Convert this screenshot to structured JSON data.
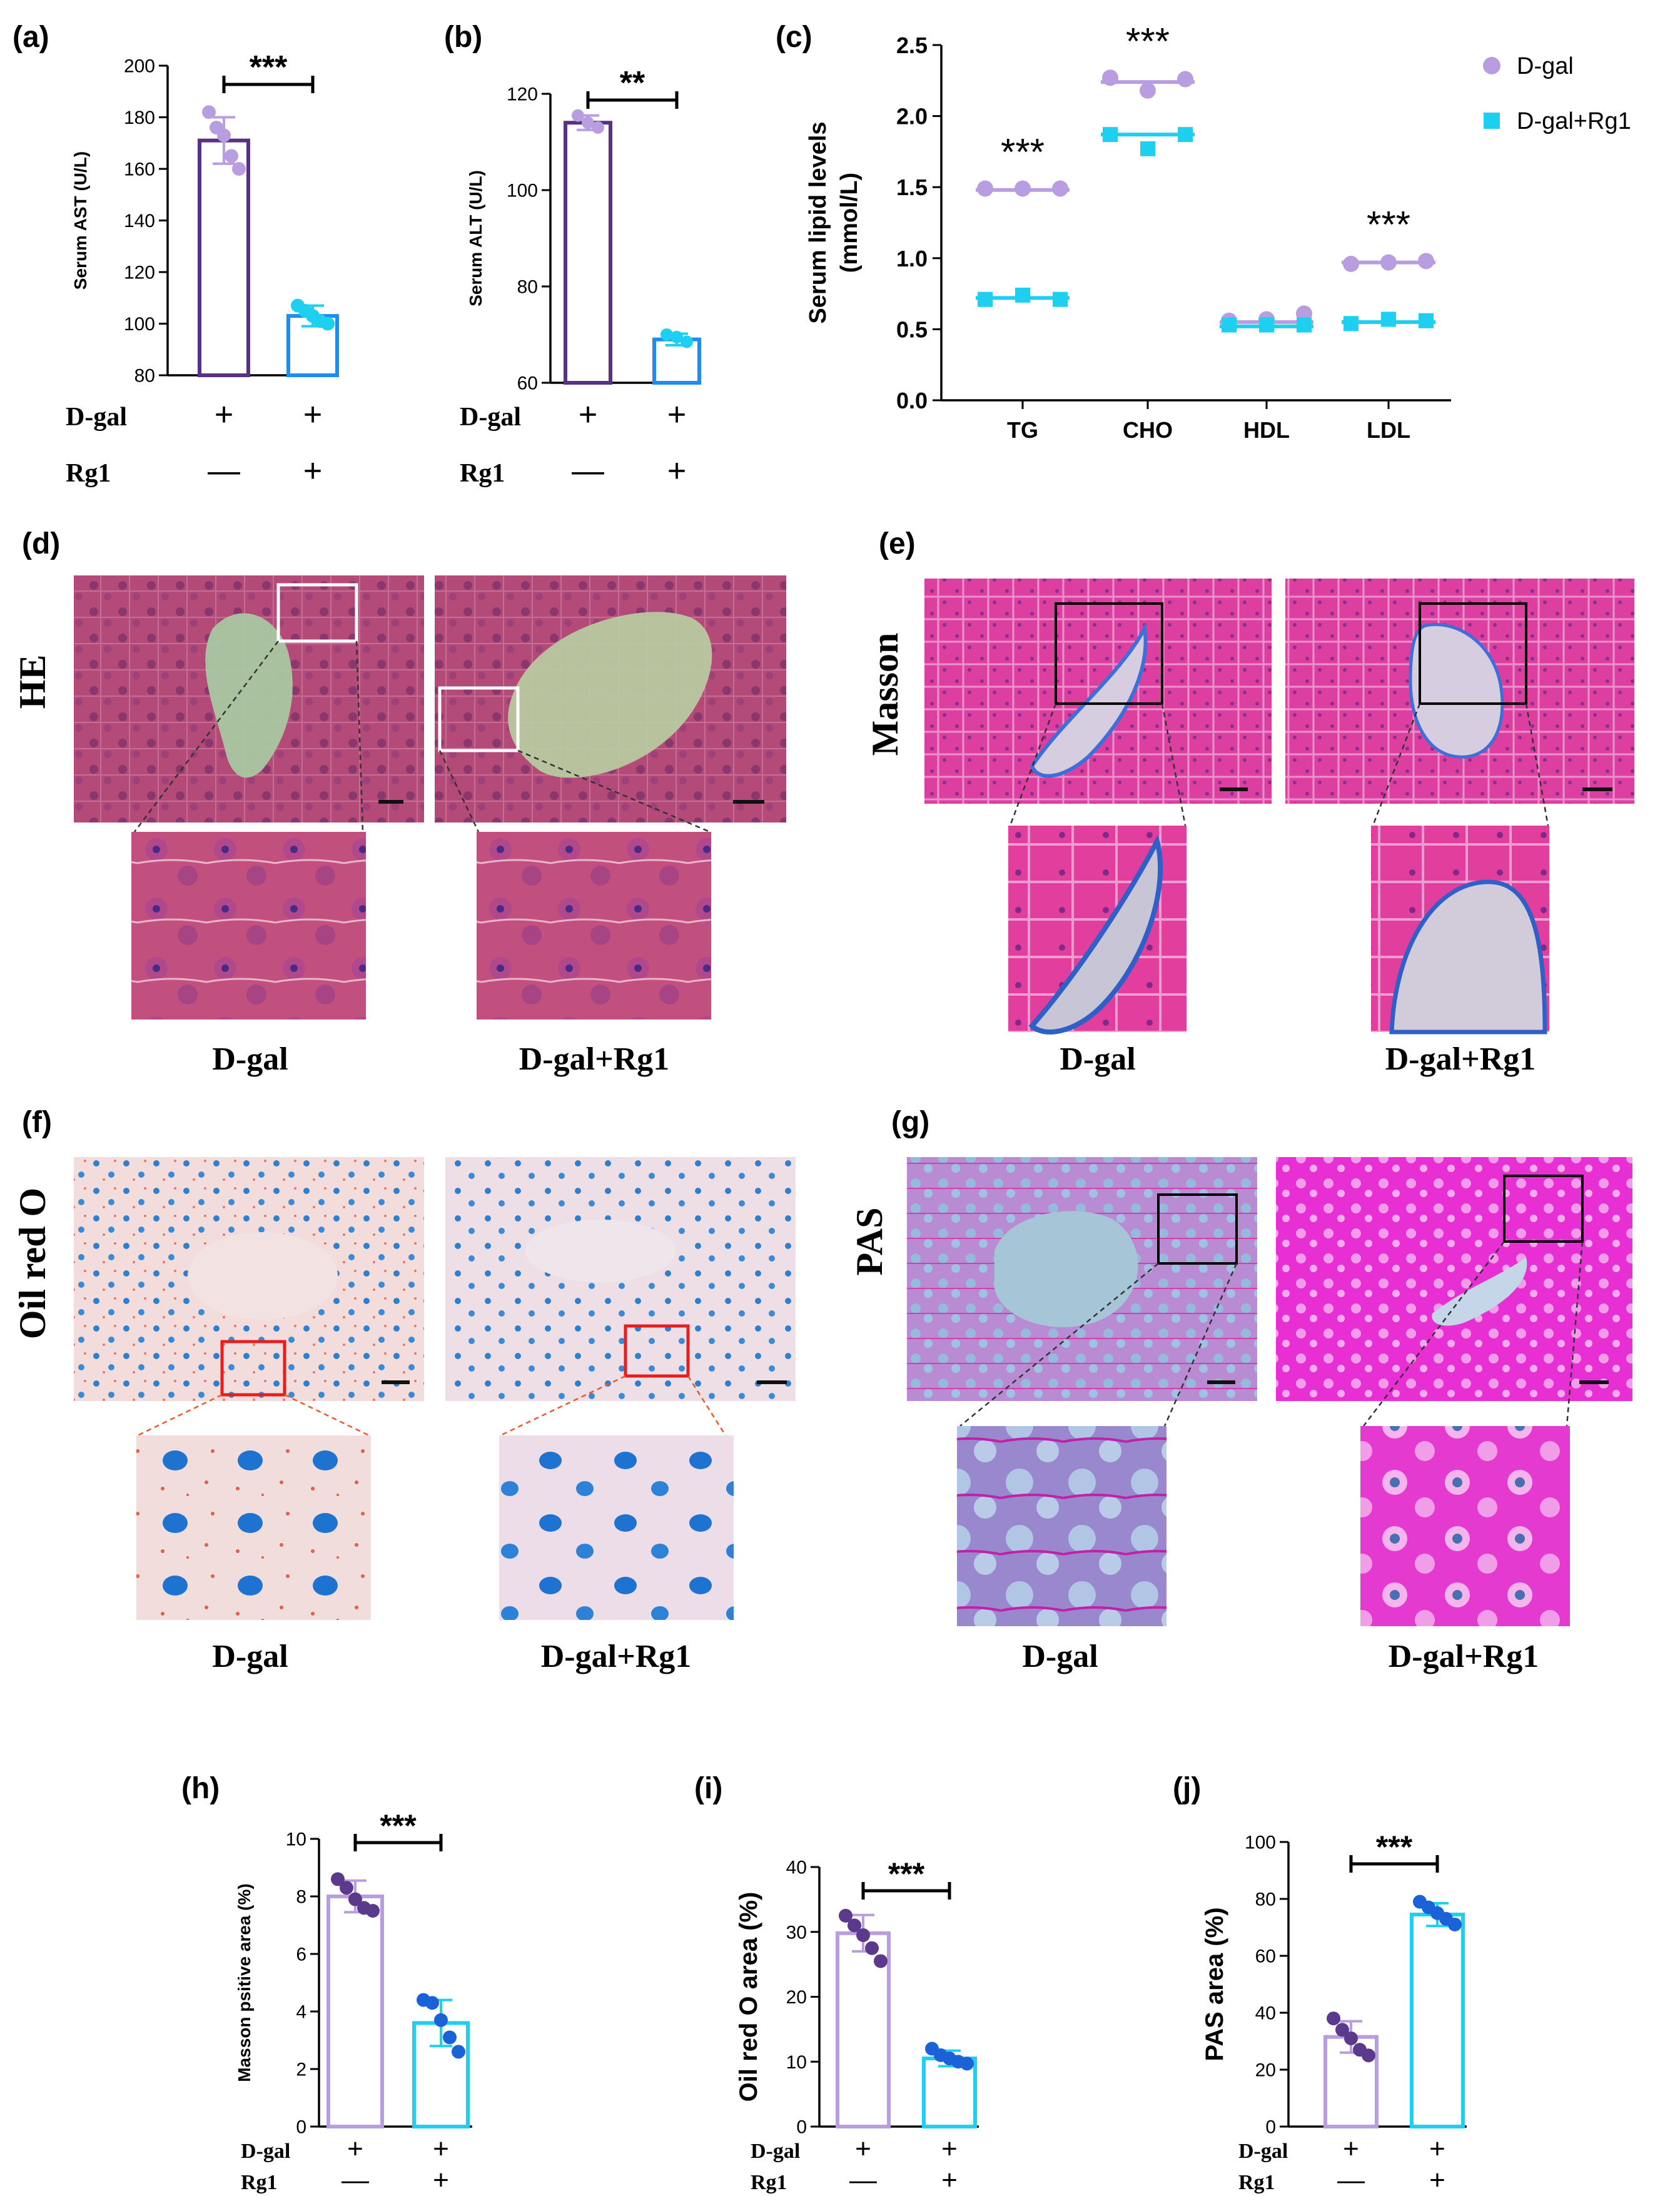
{
  "colors": {
    "dgal": "#b89ee0",
    "rg1": "#1fcff0",
    "dot_dgal_dark": "#5b3a8c",
    "dot_rg1_dark": "#1b62d8",
    "stat_bar_dgal": "#5a2f86",
    "stat_bar_rg1": "#1f8df0"
  },
  "chart_data": [
    {
      "panel": "(a)",
      "type": "bar",
      "ylabel": "Serum AST  (U/L)",
      "ylim": [
        80,
        200
      ],
      "yticks": [
        80,
        100,
        120,
        140,
        160,
        180,
        200
      ],
      "categories": [
        "D-gal",
        "D-gal+Rg1"
      ],
      "values": [
        171,
        103
      ],
      "errors": [
        9,
        4
      ],
      "points": [
        [
          182,
          176,
          173,
          165,
          160
        ],
        [
          107,
          105,
          103,
          101,
          100
        ]
      ],
      "significance": "***",
      "rows": [
        {
          "label": "D-gal",
          "marks": [
            "+",
            "+"
          ]
        },
        {
          "label": "Rg1",
          "marks": [
            "—",
            "+"
          ]
        }
      ]
    },
    {
      "panel": "(b)",
      "type": "bar",
      "ylabel": "Serum ALT  (U/L)",
      "ylim": [
        60,
        120
      ],
      "yticks": [
        60,
        80,
        100,
        120
      ],
      "categories": [
        "D-gal",
        "D-gal+Rg1"
      ],
      "values": [
        114,
        69
      ],
      "errors": [
        1.5,
        1.2
      ],
      "points": [
        [
          115.5,
          114,
          113
        ],
        [
          70,
          69.5,
          68.5
        ]
      ],
      "significance": "**",
      "rows": [
        {
          "label": "D-gal",
          "marks": [
            "+",
            "+"
          ]
        },
        {
          "label": "Rg1",
          "marks": [
            "—",
            "+"
          ]
        }
      ]
    },
    {
      "panel": "(c)",
      "type": "scatter",
      "ylabel": "Serum lipid levels (mmol/L)",
      "ylim": [
        0,
        2.5
      ],
      "yticks": [
        "0.0",
        "0.5",
        "1.0",
        "1.5",
        "2.0",
        "2.5"
      ],
      "categories": [
        "TG",
        "CHO",
        "HDL",
        "LDL"
      ],
      "significance": [
        "***",
        "***",
        "",
        "***"
      ],
      "series": [
        {
          "name": "D-gal",
          "means": [
            1.48,
            2.24,
            0.55,
            0.97
          ],
          "points": [
            [
              1.49,
              1.49,
              1.49
            ],
            [
              2.27,
              2.18,
              2.26
            ],
            [
              0.56,
              0.57,
              0.61
            ],
            [
              0.96,
              0.97,
              0.98
            ]
          ]
        },
        {
          "name": "D-gal+Rg1",
          "means": [
            0.72,
            1.87,
            0.52,
            0.55
          ],
          "points": [
            [
              0.71,
              0.74,
              0.71
            ],
            [
              1.87,
              1.77,
              1.87
            ],
            [
              0.53,
              0.53,
              0.53
            ],
            [
              0.54,
              0.57,
              0.56
            ]
          ]
        }
      ],
      "legend": "top-right"
    },
    {
      "panel": "(h)",
      "type": "bar",
      "ylabel": "Masson psitive area (%)",
      "ylim": [
        0,
        10
      ],
      "yticks": [
        0,
        2,
        4,
        6,
        8,
        10
      ],
      "categories": [
        "D-gal",
        "D-gal+Rg1"
      ],
      "values": [
        8.0,
        3.6
      ],
      "errors": [
        0.55,
        0.8
      ],
      "points": [
        [
          8.6,
          8.3,
          7.9,
          7.6,
          7.5
        ],
        [
          4.4,
          4.3,
          3.7,
          3.1,
          2.6
        ]
      ],
      "significance": "***",
      "rows": [
        {
          "label": "D-gal",
          "marks": [
            "+",
            "+"
          ]
        },
        {
          "label": "Rg1",
          "marks": [
            "—",
            "+"
          ]
        }
      ]
    },
    {
      "panel": "(i)",
      "type": "bar",
      "ylabel": "Oil red O area (%)",
      "ylim": [
        0,
        40
      ],
      "yticks": [
        0,
        10,
        20,
        30,
        40
      ],
      "categories": [
        "D-gal",
        "D-gal+Rg1"
      ],
      "values": [
        29.8,
        10.5
      ],
      "errors": [
        2.8,
        1.2
      ],
      "points": [
        [
          32.5,
          31.0,
          29.5,
          27.5,
          25.5
        ],
        [
          12.0,
          11.0,
          10.5,
          10.0,
          9.7
        ]
      ],
      "significance": "***",
      "rows": [
        {
          "label": "D-gal",
          "marks": [
            "+",
            "+"
          ]
        },
        {
          "label": "Rg1",
          "marks": [
            "—",
            "+"
          ]
        }
      ]
    },
    {
      "panel": "(j)",
      "type": "bar",
      "ylabel": "PAS area  (%)",
      "ylim": [
        0,
        100
      ],
      "yticks": [
        0,
        20,
        40,
        60,
        80,
        100
      ],
      "categories": [
        "D-gal",
        "D-gal+Rg1"
      ],
      "values": [
        31.5,
        74.5
      ],
      "errors": [
        5.5,
        4
      ],
      "points": [
        [
          38,
          34,
          31,
          27,
          25
        ],
        [
          79,
          77,
          75,
          73,
          71
        ]
      ],
      "significance": "***",
      "rows": [
        {
          "label": "D-gal",
          "marks": [
            "+",
            "+"
          ]
        },
        {
          "label": "Rg1",
          "marks": [
            "—",
            "+"
          ]
        }
      ]
    }
  ],
  "micrographs": [
    {
      "panel": "(d)",
      "stain": "HE",
      "captions": [
        "D-gal",
        "D-gal+Rg1"
      ]
    },
    {
      "panel": "(e)",
      "stain": "Masson",
      "captions": [
        "D-gal",
        "D-gal+Rg1"
      ]
    },
    {
      "panel": "(f)",
      "stain": "Oil red O",
      "captions": [
        "D-gal",
        "D-gal+Rg1"
      ]
    },
    {
      "panel": "(g)",
      "stain": "PAS",
      "captions": [
        "D-gal",
        "D-gal+Rg1"
      ]
    }
  ]
}
